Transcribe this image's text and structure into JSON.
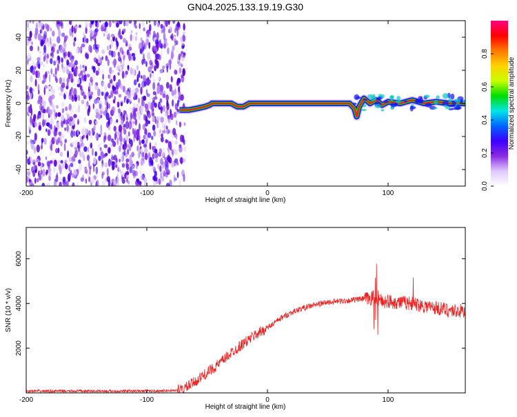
{
  "title": "GN04.2025.133.19.19.G30",
  "chart_data": [
    {
      "type": "heatmap",
      "title": "GN04.2025.133.19.19.G30",
      "xlabel": "Height of straight line (km)",
      "ylabel": "Frequency (Hz)",
      "xlim": [
        -200,
        164
      ],
      "ylim": [
        -50,
        50
      ],
      "x_ticks": [
        "-200",
        "-100",
        "0",
        "100"
      ],
      "y_ticks": [
        "-40",
        "-20",
        "0",
        "20",
        "40"
      ],
      "colorbar": {
        "label": "Normalized spectral amplitude",
        "range": [
          0,
          1
        ],
        "ticks": [
          "0.0",
          "0.2",
          "0.4",
          "0.6",
          "0.8"
        ],
        "colors": [
          "#ffffff",
          "#e0c8ff",
          "#8a2be2",
          "#3c00ff",
          "#0064ff",
          "#00e6e6",
          "#00dc00",
          "#c8ff00",
          "#ffd200",
          "#ff7800",
          "#ff0000",
          "#ff0080"
        ]
      },
      "noise_region_x": [
        -200,
        -73
      ],
      "ridge": {
        "x": [
          -73,
          -65,
          -58,
          -52,
          -48,
          -46,
          -30,
          -25,
          -20,
          -15,
          0,
          30,
          60,
          68,
          72,
          74,
          76,
          80,
          85,
          90,
          95,
          100,
          110,
          120,
          130,
          140,
          150,
          164
        ],
        "y": [
          -4,
          -4,
          -3,
          -2,
          -1,
          0,
          0,
          -2,
          -2,
          0,
          0,
          0,
          0,
          0,
          -3,
          -8,
          -2,
          3,
          0,
          2,
          -1,
          1,
          0,
          2,
          0,
          1,
          0,
          0
        ]
      }
    },
    {
      "type": "line",
      "xlabel": "Height of straight line (km)",
      "ylabel": "SNR (10 * v/v)",
      "xlim": [
        -200,
        164
      ],
      "ylim": [
        0,
        7400
      ],
      "x_ticks": [
        "-200",
        "-100",
        "0",
        "100"
      ],
      "y_ticks": [
        "2000",
        "4000",
        "6000"
      ],
      "color": "#ee2222",
      "x": [
        -200,
        -150,
        -100,
        -80,
        -70,
        -60,
        -50,
        -40,
        -30,
        -20,
        -10,
        0,
        10,
        20,
        30,
        40,
        50,
        60,
        70,
        80,
        85,
        88,
        90,
        92,
        95,
        100,
        110,
        120,
        130,
        140,
        150,
        164
      ],
      "y": [
        80,
        80,
        80,
        100,
        150,
        500,
        900,
        1300,
        1800,
        2200,
        2600,
        2900,
        3300,
        3600,
        3800,
        3950,
        4050,
        4100,
        4150,
        4200,
        4200,
        4300,
        4000,
        4200,
        4100,
        4100,
        4050,
        4000,
        3900,
        3800,
        3700,
        3650
      ]
    }
  ]
}
